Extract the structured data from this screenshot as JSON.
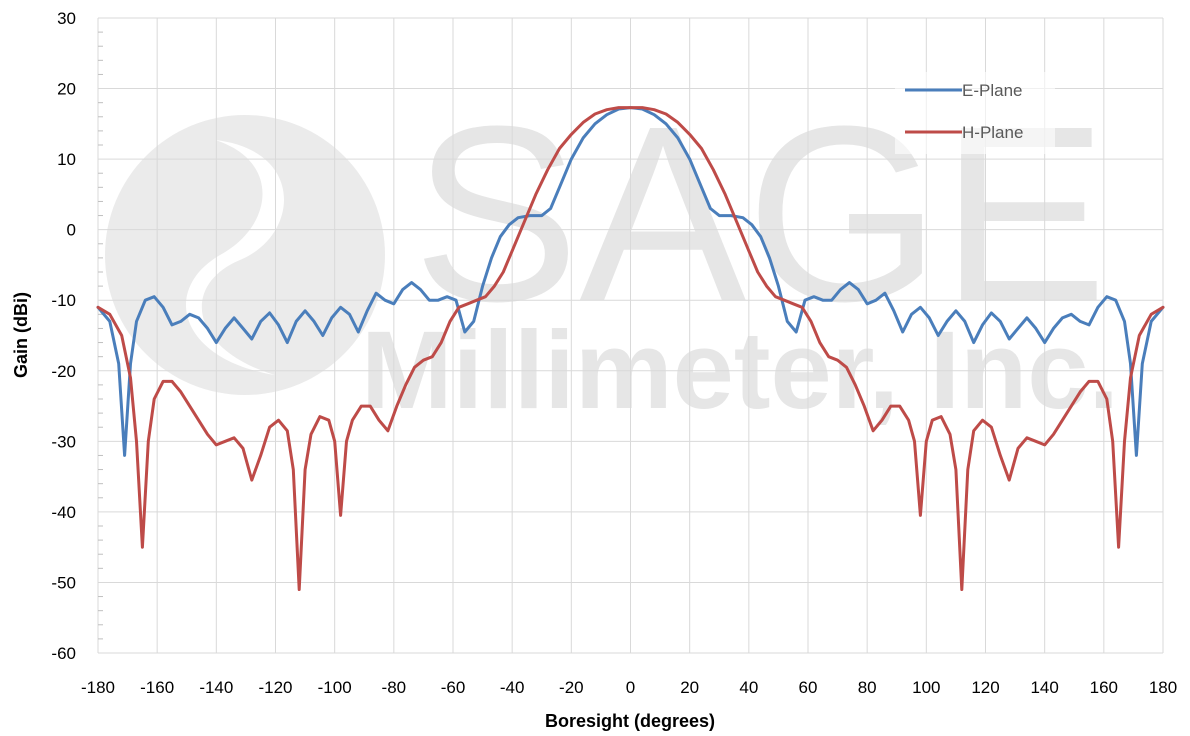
{
  "chart_data": {
    "type": "line",
    "title": "",
    "xlabel": "Boresight (degrees)",
    "ylabel": "Gain (dBi)",
    "xlim": [
      -180,
      180
    ],
    "ylim": [
      -60,
      30
    ],
    "x_ticks": [
      -180,
      -160,
      -140,
      -120,
      -100,
      -80,
      -60,
      -40,
      -20,
      0,
      20,
      40,
      60,
      80,
      100,
      120,
      140,
      160,
      180
    ],
    "y_ticks": [
      -60,
      -50,
      -40,
      -30,
      -20,
      -10,
      0,
      10,
      20,
      30
    ],
    "grid": true,
    "legend_position": "top-right",
    "watermark": {
      "line1": "SAGE",
      "line2": "Millimeter, Inc."
    },
    "series": [
      {
        "name": "E-Plane",
        "color": "#4a7ebb",
        "points": [
          [
            -180,
            -11
          ],
          [
            -176,
            -13
          ],
          [
            -173,
            -19
          ],
          [
            -171,
            -32
          ],
          [
            -169,
            -19
          ],
          [
            -167,
            -13
          ],
          [
            -164,
            -10
          ],
          [
            -161,
            -9.5
          ],
          [
            -158,
            -11
          ],
          [
            -155,
            -13.5
          ],
          [
            -152,
            -13
          ],
          [
            -149,
            -12
          ],
          [
            -146,
            -12.5
          ],
          [
            -143,
            -14
          ],
          [
            -140,
            -16
          ],
          [
            -137,
            -14
          ],
          [
            -134,
            -12.5
          ],
          [
            -131,
            -14
          ],
          [
            -128,
            -15.5
          ],
          [
            -125,
            -13
          ],
          [
            -122,
            -11.8
          ],
          [
            -119,
            -13.5
          ],
          [
            -116,
            -16
          ],
          [
            -113,
            -13
          ],
          [
            -110,
            -11.5
          ],
          [
            -107,
            -13
          ],
          [
            -104,
            -15
          ],
          [
            -101,
            -12.5
          ],
          [
            -98,
            -11
          ],
          [
            -95,
            -12
          ],
          [
            -92,
            -14.5
          ],
          [
            -89,
            -11.5
          ],
          [
            -86,
            -9
          ],
          [
            -83,
            -10
          ],
          [
            -80,
            -10.5
          ],
          [
            -77,
            -8.5
          ],
          [
            -74,
            -7.5
          ],
          [
            -71,
            -8.5
          ],
          [
            -68,
            -10
          ],
          [
            -65,
            -10
          ],
          [
            -62,
            -9.5
          ],
          [
            -59,
            -10
          ],
          [
            -56,
            -14.5
          ],
          [
            -53,
            -13
          ],
          [
            -50,
            -8
          ],
          [
            -47,
            -4
          ],
          [
            -44,
            -1
          ],
          [
            -41,
            0.7
          ],
          [
            -38,
            1.7
          ],
          [
            -34,
            2
          ],
          [
            -30,
            2
          ],
          [
            -27,
            3
          ],
          [
            -24,
            6
          ],
          [
            -20,
            10
          ],
          [
            -16,
            13
          ],
          [
            -12,
            15
          ],
          [
            -8,
            16.3
          ],
          [
            -4,
            17.1
          ],
          [
            0,
            17.3
          ],
          [
            4,
            17.1
          ],
          [
            8,
            16.3
          ],
          [
            12,
            15
          ],
          [
            16,
            13
          ],
          [
            20,
            10
          ],
          [
            24,
            6
          ],
          [
            27,
            3
          ],
          [
            30,
            2
          ],
          [
            34,
            2
          ],
          [
            38,
            1.7
          ],
          [
            41,
            0.7
          ],
          [
            44,
            -1
          ],
          [
            47,
            -4
          ],
          [
            50,
            -8
          ],
          [
            53,
            -13
          ],
          [
            56,
            -14.5
          ],
          [
            59,
            -10
          ],
          [
            62,
            -9.5
          ],
          [
            65,
            -10
          ],
          [
            68,
            -10
          ],
          [
            71,
            -8.5
          ],
          [
            74,
            -7.5
          ],
          [
            77,
            -8.5
          ],
          [
            80,
            -10.5
          ],
          [
            83,
            -10
          ],
          [
            86,
            -9
          ],
          [
            89,
            -11.5
          ],
          [
            92,
            -14.5
          ],
          [
            95,
            -12
          ],
          [
            98,
            -11
          ],
          [
            101,
            -12.5
          ],
          [
            104,
            -15
          ],
          [
            107,
            -13
          ],
          [
            110,
            -11.5
          ],
          [
            113,
            -13
          ],
          [
            116,
            -16
          ],
          [
            119,
            -13.5
          ],
          [
            122,
            -11.8
          ],
          [
            125,
            -13
          ],
          [
            128,
            -15.5
          ],
          [
            131,
            -14
          ],
          [
            134,
            -12.5
          ],
          [
            137,
            -14
          ],
          [
            140,
            -16
          ],
          [
            143,
            -14
          ],
          [
            146,
            -12.5
          ],
          [
            149,
            -12
          ],
          [
            152,
            -13
          ],
          [
            155,
            -13.5
          ],
          [
            158,
            -11
          ],
          [
            161,
            -9.5
          ],
          [
            164,
            -10
          ],
          [
            167,
            -13
          ],
          [
            169,
            -19
          ],
          [
            171,
            -32
          ],
          [
            173,
            -19
          ],
          [
            176,
            -13
          ],
          [
            180,
            -11
          ]
        ]
      },
      {
        "name": "H-Plane",
        "color": "#be4b48",
        "points": [
          [
            -180,
            -11
          ],
          [
            -176,
            -12
          ],
          [
            -172,
            -15
          ],
          [
            -169,
            -21
          ],
          [
            -167,
            -30
          ],
          [
            -165,
            -45
          ],
          [
            -163,
            -30
          ],
          [
            -161,
            -24
          ],
          [
            -158,
            -21.5
          ],
          [
            -155,
            -21.5
          ],
          [
            -152,
            -23
          ],
          [
            -149,
            -25
          ],
          [
            -146,
            -27
          ],
          [
            -143,
            -29
          ],
          [
            -140,
            -30.5
          ],
          [
            -137,
            -30
          ],
          [
            -134,
            -29.5
          ],
          [
            -131,
            -31
          ],
          [
            -128,
            -35.5
          ],
          [
            -125,
            -32
          ],
          [
            -122,
            -28
          ],
          [
            -119,
            -27
          ],
          [
            -116,
            -28.5
          ],
          [
            -114,
            -34
          ],
          [
            -112,
            -51
          ],
          [
            -110,
            -34
          ],
          [
            -108,
            -29
          ],
          [
            -105,
            -26.5
          ],
          [
            -102,
            -27
          ],
          [
            -100,
            -30
          ],
          [
            -98,
            -40.5
          ],
          [
            -96,
            -30
          ],
          [
            -94,
            -27
          ],
          [
            -91,
            -25
          ],
          [
            -88,
            -25
          ],
          [
            -85,
            -27
          ],
          [
            -82,
            -28.5
          ],
          [
            -79,
            -25
          ],
          [
            -76,
            -22
          ],
          [
            -73,
            -19.5
          ],
          [
            -70,
            -18.5
          ],
          [
            -67,
            -18
          ],
          [
            -64,
            -16
          ],
          [
            -61,
            -13
          ],
          [
            -58,
            -11
          ],
          [
            -55,
            -10.5
          ],
          [
            -52,
            -10
          ],
          [
            -49,
            -9.5
          ],
          [
            -46,
            -8
          ],
          [
            -43,
            -6
          ],
          [
            -40,
            -3
          ],
          [
            -36,
            1
          ],
          [
            -32,
            5
          ],
          [
            -28,
            8.5
          ],
          [
            -24,
            11.5
          ],
          [
            -20,
            13.5
          ],
          [
            -16,
            15.2
          ],
          [
            -12,
            16.4
          ],
          [
            -8,
            17
          ],
          [
            -4,
            17.3
          ],
          [
            0,
            17.3
          ],
          [
            4,
            17.3
          ],
          [
            8,
            17
          ],
          [
            12,
            16.4
          ],
          [
            16,
            15.2
          ],
          [
            20,
            13.5
          ],
          [
            24,
            11.5
          ],
          [
            28,
            8.5
          ],
          [
            32,
            5
          ],
          [
            36,
            1
          ],
          [
            40,
            -3
          ],
          [
            43,
            -6
          ],
          [
            46,
            -8
          ],
          [
            49,
            -9.5
          ],
          [
            52,
            -10
          ],
          [
            55,
            -10.5
          ],
          [
            58,
            -11
          ],
          [
            61,
            -13
          ],
          [
            64,
            -16
          ],
          [
            67,
            -18
          ],
          [
            70,
            -18.5
          ],
          [
            73,
            -19.5
          ],
          [
            76,
            -22
          ],
          [
            79,
            -25
          ],
          [
            82,
            -28.5
          ],
          [
            85,
            -27
          ],
          [
            88,
            -25
          ],
          [
            91,
            -25
          ],
          [
            94,
            -27
          ],
          [
            96,
            -30
          ],
          [
            98,
            -40.5
          ],
          [
            100,
            -30
          ],
          [
            102,
            -27
          ],
          [
            105,
            -26.5
          ],
          [
            108,
            -29
          ],
          [
            110,
            -34
          ],
          [
            112,
            -51
          ],
          [
            114,
            -34
          ],
          [
            116,
            -28.5
          ],
          [
            119,
            -27
          ],
          [
            122,
            -28
          ],
          [
            125,
            -32
          ],
          [
            128,
            -35.5
          ],
          [
            131,
            -31
          ],
          [
            134,
            -29.5
          ],
          [
            137,
            -30
          ],
          [
            140,
            -30.5
          ],
          [
            143,
            -29
          ],
          [
            146,
            -27
          ],
          [
            149,
            -25
          ],
          [
            152,
            -23
          ],
          [
            155,
            -21.5
          ],
          [
            158,
            -21.5
          ],
          [
            161,
            -24
          ],
          [
            163,
            -30
          ],
          [
            165,
            -45
          ],
          [
            167,
            -30
          ],
          [
            169,
            -21
          ],
          [
            172,
            -15
          ],
          [
            176,
            -12
          ],
          [
            180,
            -11
          ]
        ]
      }
    ]
  }
}
